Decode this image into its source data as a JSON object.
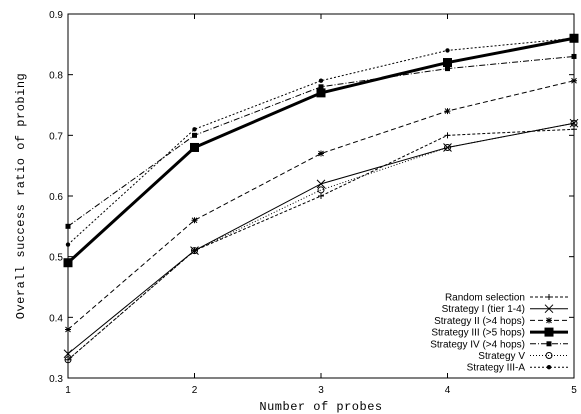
{
  "chart_data": {
    "type": "line",
    "title": "",
    "xlabel": "Number of probes",
    "ylabel": "Overall success ratio of probing",
    "x": [
      1,
      2,
      3,
      4,
      5
    ],
    "xlim": [
      1,
      5
    ],
    "ylim": [
      0.3,
      0.9
    ],
    "xticks": [
      "1",
      "2",
      "3",
      "4",
      "5"
    ],
    "yticks": [
      "0.3",
      "0.4",
      "0.5",
      "0.6",
      "0.7",
      "0.8",
      "0.9"
    ],
    "grid": false,
    "legend_position": "bottom-right",
    "series": [
      {
        "name": "Random selection",
        "values": [
          0.33,
          0.51,
          0.6,
          0.7,
          0.71
        ],
        "marker": "plus",
        "dash": "3,2",
        "width": 1
      },
      {
        "name": "Strategy I (tier 1-4)",
        "values": [
          0.34,
          0.51,
          0.62,
          0.68,
          0.72
        ],
        "marker": "x",
        "dash": "",
        "width": 1
      },
      {
        "name": "Strategy II (>4 hops)",
        "values": [
          0.38,
          0.56,
          0.67,
          0.74,
          0.79
        ],
        "marker": "star",
        "dash": "5,3",
        "width": 1
      },
      {
        "name": "Strategy III (>5 hops)",
        "values": [
          0.49,
          0.68,
          0.77,
          0.82,
          0.86
        ],
        "marker": "square",
        "dash": "",
        "width": 3
      },
      {
        "name": "Strategy IV (>4 hops)",
        "values": [
          0.55,
          0.7,
          0.78,
          0.81,
          0.83
        ],
        "marker": "smallsquare",
        "dash": "6,2,1,2",
        "width": 1
      },
      {
        "name": "Strategy V",
        "values": [
          0.33,
          0.51,
          0.61,
          0.68,
          0.72
        ],
        "marker": "circle",
        "dash": "1,2",
        "width": 1
      },
      {
        "name": "Strategy III-A",
        "values": [
          0.52,
          0.71,
          0.79,
          0.84,
          0.86
        ],
        "marker": "dot",
        "dash": "2,2",
        "width": 1
      }
    ]
  }
}
